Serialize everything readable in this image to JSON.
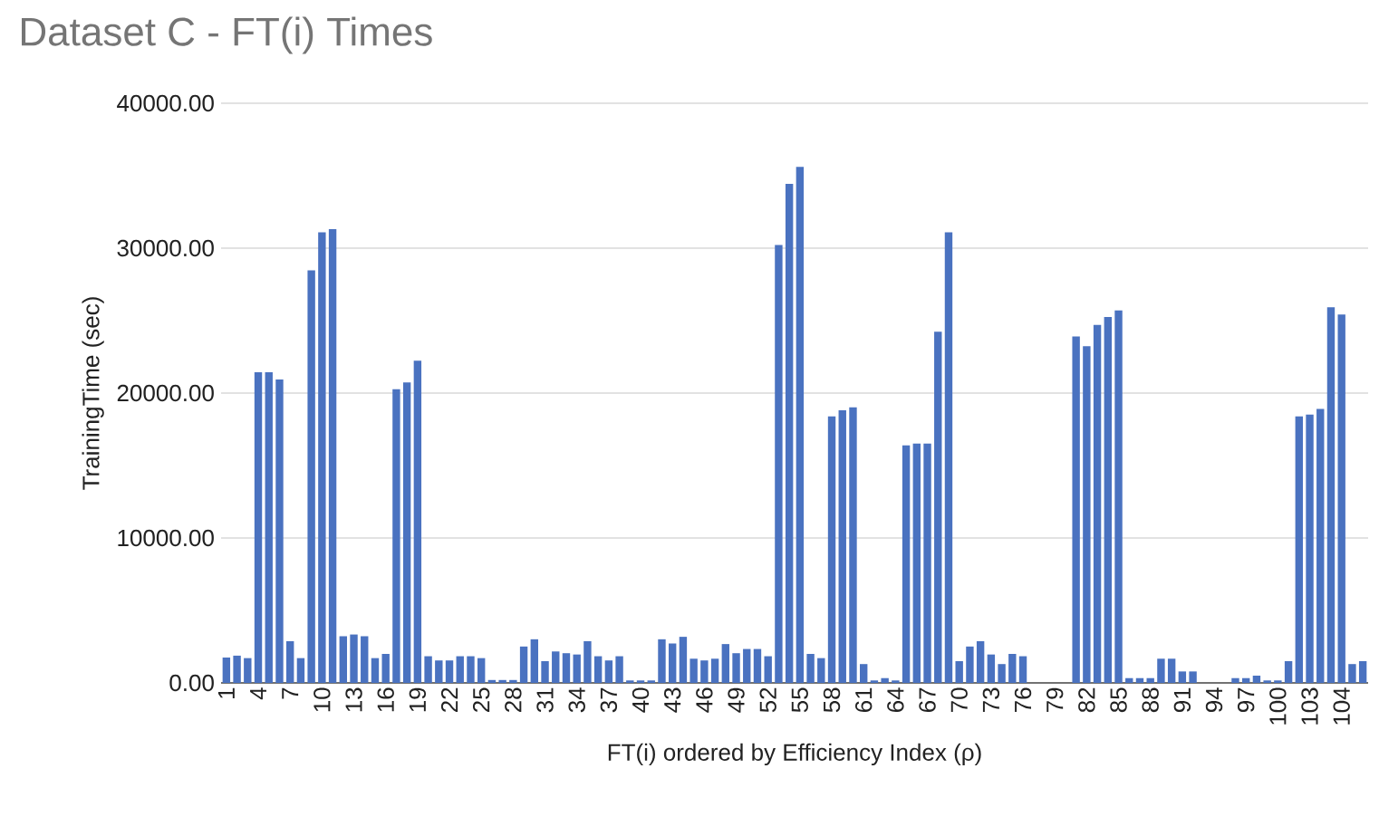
{
  "chart_data": {
    "type": "bar",
    "title": "Dataset C - FT(i) Times",
    "xlabel": "FT(i) ordered by Efficiency Index (ρ)",
    "ylabel": "TrainingTime (sec)",
    "categories": [
      "1",
      null,
      null,
      "4",
      null,
      null,
      "7",
      null,
      null,
      "10",
      null,
      null,
      "13",
      null,
      null,
      "16",
      null,
      null,
      "19",
      null,
      null,
      "22",
      null,
      null,
      "25",
      null,
      null,
      "28",
      null,
      null,
      "31",
      null,
      null,
      "34",
      null,
      null,
      "37",
      null,
      null,
      "40",
      null,
      null,
      "43",
      null,
      null,
      "46",
      null,
      null,
      "49",
      null,
      null,
      "52",
      null,
      null,
      "55",
      null,
      null,
      "58",
      null,
      null,
      "61",
      null,
      null,
      "64",
      null,
      null,
      "67",
      null,
      null,
      "70",
      null,
      null,
      "73",
      null,
      null,
      "76",
      null,
      null,
      "79",
      null,
      null,
      "82",
      null,
      null,
      "85",
      null,
      null,
      "88",
      null,
      null,
      "91",
      null,
      null,
      "94",
      null,
      null,
      "97",
      null,
      null,
      "100",
      null,
      null,
      "103",
      null,
      null,
      "104",
      null,
      null
    ],
    "values": [
      1750,
      1880,
      1710,
      21440,
      21440,
      20940,
      2880,
      1710,
      28470,
      31100,
      31310,
      3220,
      3340,
      3220,
      1710,
      2000,
      20270,
      20730,
      22240,
      1840,
      1550,
      1550,
      1840,
      1840,
      1710,
      200,
      200,
      200,
      2510,
      3010,
      1500,
      2170,
      2050,
      1960,
      2880,
      1840,
      1550,
      1840,
      170,
      170,
      170,
      3010,
      2720,
      3180,
      1670,
      1550,
      1670,
      2680,
      2050,
      2340,
      2340,
      1840,
      30220,
      34440,
      35610,
      2000,
      1710,
      18390,
      18810,
      19020,
      1300,
      170,
      330,
      170,
      16390,
      16510,
      16510,
      24240,
      31100,
      1500,
      2510,
      2880,
      1960,
      1300,
      2000,
      1840,
      null,
      null,
      null,
      null,
      23910,
      23240,
      24700,
      25250,
      25710,
      330,
      330,
      330,
      1670,
      1670,
      790,
      790,
      null,
      null,
      null,
      330,
      330,
      500,
      170,
      170,
      1500,
      18390,
      18520,
      18900,
      25920,
      25420,
      1300,
      1500
    ],
    "color": "#4a72c0",
    "ylim": [
      0,
      40000
    ],
    "yticks": [
      {
        "value": 0,
        "label": "0.00"
      },
      {
        "value": 10000,
        "label": "10000.00"
      },
      {
        "value": 20000,
        "label": "20000.00"
      },
      {
        "value": 30000,
        "label": "30000.00"
      },
      {
        "value": 40000,
        "label": "40000.00"
      }
    ],
    "grid": "y"
  }
}
